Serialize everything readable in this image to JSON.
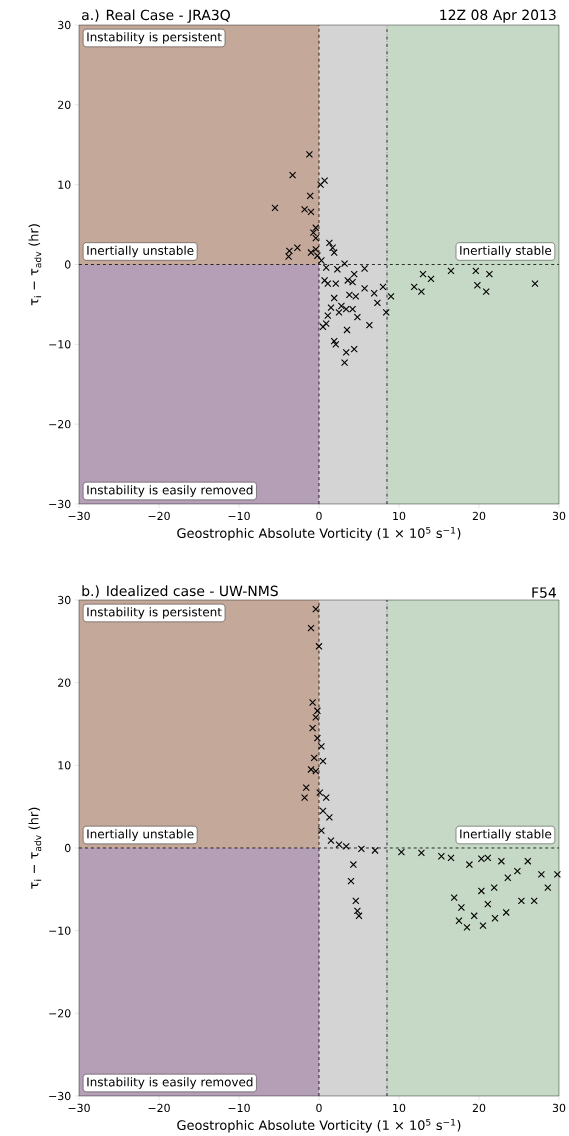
{
  "chart_data": [
    {
      "type": "scatter",
      "title": "a.) Real Case - JRA3Q",
      "subtitle": "12Z 08 Apr 2013",
      "xlabel": "Geostrophic Absolute Vorticity (1 × 10$^{5}$ s$^{−1}$)",
      "ylabel": "τ$_{i}$ − τ$_{adv}$ (hr)",
      "xlim": [
        -30,
        30
      ],
      "ylim": [
        -30,
        30
      ],
      "xticks": [
        {
          "value": -30,
          "label": "−30"
        },
        {
          "value": -20,
          "label": "−20"
        },
        {
          "value": -10,
          "label": "−10"
        },
        0,
        10,
        20,
        30
      ],
      "yticks": [
        {
          "value": -30,
          "label": "−30"
        },
        {
          "value": -20,
          "label": "−20"
        },
        {
          "value": -10,
          "label": "−10"
        },
        0,
        10,
        20,
        30
      ],
      "marker": "cross",
      "bands": [
        {
          "axis": "x",
          "from": -30,
          "to": 0,
          "color": "#c4a899"
        },
        {
          "axis": "y",
          "from": -30,
          "to": 0,
          "color": "#b59fb6"
        },
        {
          "axis": "x",
          "from": 0,
          "to": 8.5,
          "color": "#d4d4d4"
        },
        {
          "axis": "x",
          "from": 8.5,
          "to": 30,
          "color": "#c6d9c6"
        }
      ],
      "ref_lines": [
        {
          "axis": "x",
          "value": 0,
          "line_style": "dashed"
        },
        {
          "axis": "y",
          "value": 0,
          "line_style": "dashed"
        },
        {
          "axis": "x",
          "value": 8.5,
          "line_style": "dashdot"
        }
      ],
      "annotations": [
        "Instability is persistent",
        "Inertially unstable",
        "Inertially stable",
        "Instability is easily removed"
      ],
      "series": [
        {
          "color": "#000000",
          "x": [
            -1.2,
            -3.3,
            0.7,
            0.2,
            -1.1,
            -5.5,
            -1.8,
            -1.0,
            -0.4,
            -0.7,
            -0.4,
            1.3,
            1.7,
            1.9,
            -2.7,
            -3.7,
            -3.8,
            -1.0,
            -0.4,
            -0.2,
            0.3,
            0.9,
            3.2,
            5.7,
            2.3,
            0.7,
            4.4,
            3.6,
            1.1,
            2.1,
            4.2,
            5.7,
            6.9,
            8.0,
            9.0,
            1.9,
            3.8,
            4.6,
            7.3,
            8.4,
            1.5,
            2.8,
            3.4,
            1.1,
            2.5,
            4.2,
            4.8,
            6.3,
            0.9,
            0.5,
            3.5,
            1.9,
            2.1,
            3.4,
            4.4,
            3.2,
            11.9,
            13.0,
            12.8,
            14.0,
            16.5,
            19.6,
            21.3,
            19.8,
            20.9,
            27.0
          ],
          "values": [
            13.8,
            11.2,
            10.5,
            10.0,
            8.6,
            7.1,
            6.9,
            6.6,
            4.6,
            4.0,
            3.3,
            2.7,
            2.1,
            1.5,
            2.1,
            1.7,
            1.0,
            1.5,
            1.9,
            1.1,
            0.5,
            -0.4,
            0.1,
            -0.5,
            -0.6,
            -2.0,
            -1.2,
            -2.0,
            -2.4,
            -2.4,
            -2.2,
            -3.0,
            -3.6,
            -2.8,
            -4.0,
            -4.2,
            -3.8,
            -4.0,
            -4.8,
            -6.0,
            -5.4,
            -5.2,
            -5.6,
            -6.4,
            -6.0,
            -5.6,
            -6.6,
            -7.6,
            -7.4,
            -7.8,
            -8.2,
            -9.6,
            -10.0,
            -11.0,
            -10.6,
            -12.3,
            -2.8,
            -1.2,
            -3.4,
            -1.8,
            -0.8,
            -0.8,
            -1.2,
            -2.6,
            -3.4,
            -2.4
          ]
        }
      ]
    },
    {
      "type": "scatter",
      "title": "b.) Idealized case - UW-NMS",
      "subtitle": "F54",
      "xlabel": "Geostrophic Absolute Vorticity (1 × 10$^{5}$ s$^{−1}$)",
      "ylabel": "τ$_{i}$ − τ$_{adv}$ (hr)",
      "xlim": [
        -30,
        30
      ],
      "ylim": [
        -30,
        30
      ],
      "xticks": [
        {
          "value": -30,
          "label": "−30"
        },
        {
          "value": -20,
          "label": "−20"
        },
        {
          "value": -10,
          "label": "−10"
        },
        0,
        10,
        20,
        30
      ],
      "yticks": [
        {
          "value": -30,
          "label": "−30"
        },
        {
          "value": -20,
          "label": "−20"
        },
        {
          "value": -10,
          "label": "−10"
        },
        0,
        10,
        20,
        30
      ],
      "marker": "cross",
      "bands": [
        {
          "axis": "x",
          "from": -30,
          "to": 0,
          "color": "#c4a899"
        },
        {
          "axis": "y",
          "from": -30,
          "to": 0,
          "color": "#b59fb6"
        },
        {
          "axis": "x",
          "from": 0,
          "to": 8.5,
          "color": "#d4d4d4"
        },
        {
          "axis": "x",
          "from": 8.5,
          "to": 30,
          "color": "#c6d9c6"
        }
      ],
      "ref_lines": [
        {
          "axis": "x",
          "value": 0,
          "line_style": "dashed"
        },
        {
          "axis": "y",
          "value": 0,
          "line_style": "dashed"
        },
        {
          "axis": "x",
          "value": 8.5,
          "line_style": "dashdot"
        }
      ],
      "annotations": [
        "Instability is persistent",
        "Inertially unstable",
        "Inertially stable",
        "Instability is easily removed"
      ],
      "series": [
        {
          "color": "#000000",
          "x": [
            -0.4,
            -1.0,
            0.0,
            -0.8,
            -0.2,
            -0.4,
            -0.8,
            -0.2,
            0.3,
            -0.6,
            0.5,
            -1.0,
            -0.4,
            -1.6,
            -1.8,
            0.1,
            0.9,
            0.5,
            1.3,
            0.3,
            1.5,
            2.5,
            3.4,
            4.0,
            4.3,
            4.6,
            4.8,
            5.0,
            5.3,
            7.0,
            10.3,
            12.8,
            15.3,
            16.5,
            18.8,
            20.3,
            21.1,
            22.8,
            24.8,
            26.1,
            27.8,
            29.8,
            23.6,
            21.9,
            20.3,
            28.6,
            16.9,
            17.8,
            19.4,
            23.4,
            21.1,
            25.3,
            26.9,
            18.5,
            20.5,
            17.5,
            22.0
          ],
          "values": [
            28.9,
            26.6,
            24.4,
            17.6,
            16.6,
            15.8,
            14.5,
            13.3,
            12.3,
            10.9,
            10.5,
            9.5,
            9.3,
            7.3,
            6.1,
            6.7,
            6.1,
            4.5,
            3.7,
            2.1,
            0.9,
            0.4,
            0.2,
            -4.0,
            -2.0,
            -6.4,
            -7.6,
            -8.2,
            -0.1,
            -0.3,
            -0.5,
            -0.6,
            -1.0,
            -1.2,
            -2.0,
            -1.3,
            -1.2,
            -1.6,
            -2.8,
            -1.6,
            -3.2,
            -3.2,
            -3.6,
            -4.8,
            -5.2,
            -4.8,
            -6.0,
            -7.2,
            -8.2,
            -7.8,
            -6.8,
            -6.4,
            -6.4,
            -9.6,
            -9.4,
            -8.8,
            -8.5
          ]
        }
      ]
    }
  ]
}
